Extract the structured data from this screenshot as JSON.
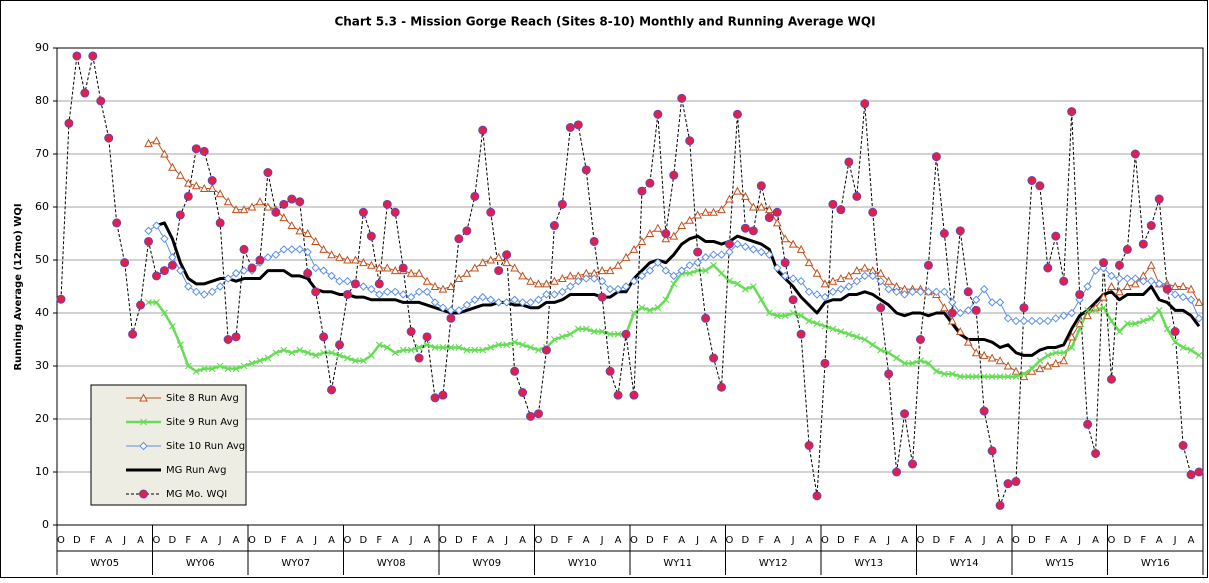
{
  "chart_data": {
    "type": "line",
    "title": "Chart 5.3 - Mission Gorge Reach (Sites 8-10) Monthly and Running Average WQI",
    "y_label": "Running Average (12mo) WQI",
    "ylim": [
      0,
      90
    ],
    "yticks": [
      0,
      10,
      20,
      30,
      40,
      50,
      60,
      70,
      80,
      90
    ],
    "grid": true,
    "legend": "bottom-left",
    "categories": [
      "O",
      null,
      "D",
      null,
      "F",
      null,
      "A",
      null,
      "J",
      null,
      "A",
      null,
      "O",
      null,
      "D",
      null,
      "F",
      null,
      "A",
      null,
      "J",
      null,
      "A",
      null,
      "O",
      null,
      "D",
      null,
      "F",
      null,
      "A",
      null,
      "J",
      null,
      "A",
      null,
      "O",
      null,
      "D",
      null,
      "F",
      null,
      "A",
      null,
      "J",
      null,
      "A",
      null,
      "O",
      null,
      "D",
      null,
      "F",
      null,
      "A",
      null,
      "J",
      null,
      "A",
      null,
      "O",
      null,
      "D",
      null,
      "F",
      null,
      "A",
      null,
      "J",
      null,
      "A",
      null,
      "O",
      null,
      "D",
      null,
      "F",
      null,
      "A",
      null,
      "J",
      null,
      "A",
      null,
      "O",
      null,
      "D",
      null,
      "F",
      null,
      "A",
      null,
      "J",
      null,
      "A",
      null,
      "O",
      null,
      "D",
      null,
      "F",
      null,
      "A",
      null,
      "J",
      null,
      "A",
      null,
      "O",
      null,
      "D",
      null,
      "F",
      null,
      "A",
      null,
      "J",
      null,
      "A",
      null,
      "O",
      null,
      "D",
      null,
      "F",
      null,
      "A",
      null,
      "J",
      null,
      "A",
      null,
      "O",
      null,
      "D",
      null,
      "F",
      null,
      "A",
      null,
      "J",
      null,
      "A",
      null
    ],
    "groups": [
      "WY05",
      "WY06",
      "WY07",
      "WY08",
      "WY09",
      "WY10",
      "WY11",
      "WY12",
      "WY13",
      "WY14",
      "WY15",
      "WY16"
    ],
    "series": [
      {
        "name": "Site 8 Run Avg",
        "color": "#c0501e",
        "marker": "triangle",
        "width": 1,
        "values": [
          null,
          null,
          null,
          null,
          null,
          null,
          null,
          null,
          null,
          null,
          null,
          72,
          72.5,
          70,
          67.5,
          66,
          64.5,
          64,
          63.5,
          63.5,
          62.5,
          61,
          59.5,
          59.5,
          60,
          61,
          60,
          59.5,
          58,
          56.5,
          55.5,
          55,
          53.5,
          52,
          51,
          50.5,
          50,
          50,
          49.5,
          49,
          48.5,
          48.5,
          48,
          48,
          47.5,
          47.5,
          46,
          45,
          44.5,
          45,
          46.5,
          47.5,
          48.5,
          49.5,
          50,
          50.5,
          49.5,
          48.5,
          47,
          46,
          45.5,
          45.5,
          46,
          46.5,
          47,
          47,
          47.5,
          47.5,
          48,
          48,
          49,
          50.5,
          52,
          53.5,
          55,
          56,
          54,
          54.5,
          56.5,
          57.5,
          58.5,
          59,
          59,
          59.5,
          61.5,
          63,
          62,
          60,
          60,
          59.5,
          57,
          54,
          53,
          52,
          49.5,
          47.5,
          45.5,
          46,
          46.5,
          47,
          48,
          48.5,
          48,
          47.5,
          46,
          45,
          44.5,
          44.5,
          44.5,
          44,
          43.5,
          41,
          38.5,
          36.5,
          34.5,
          32.5,
          32,
          31.5,
          31,
          30,
          29,
          28,
          29,
          29.5,
          30,
          30.5,
          31,
          35.5,
          38,
          39.5,
          41,
          43,
          45,
          44,
          45,
          45.5,
          47,
          49,
          45.5,
          45.5,
          45,
          45,
          44.5,
          42
        ]
      },
      {
        "name": "Site 9 Run Avg",
        "color": "#66dd55",
        "marker": "x",
        "width": 2.5,
        "values": [
          null,
          null,
          null,
          null,
          null,
          null,
          null,
          null,
          null,
          null,
          null,
          42,
          42,
          40,
          37.5,
          34,
          30,
          29,
          29.5,
          29.5,
          30,
          29.5,
          29.5,
          30,
          30.5,
          31,
          31.5,
          32.5,
          33,
          32.5,
          33,
          32.5,
          32,
          32.5,
          32.5,
          32,
          31.5,
          31,
          31,
          32,
          34,
          33.5,
          32.5,
          33,
          33,
          33.5,
          34,
          33.5,
          33.5,
          33.5,
          33.5,
          33,
          33,
          33,
          33.5,
          34,
          34,
          34.5,
          34,
          33.5,
          33,
          33.5,
          35,
          35.5,
          36,
          37,
          37,
          36.5,
          36.5,
          36,
          36,
          36,
          40,
          41,
          40.5,
          41,
          42.5,
          45.5,
          47.5,
          47.5,
          48,
          48,
          49,
          47.5,
          46,
          45.5,
          44.5,
          45,
          42.5,
          40,
          39.5,
          39.5,
          40,
          39.5,
          38.5,
          38,
          37.5,
          37,
          36.5,
          36,
          35.5,
          35,
          34,
          33,
          32.5,
          31.5,
          30.5,
          30.5,
          31,
          30.5,
          29,
          28.5,
          28.5,
          28,
          28,
          28,
          28,
          28,
          28,
          28,
          28,
          28.5,
          29.5,
          31,
          32,
          32.5,
          32.5,
          33.5,
          37,
          40.5,
          40.5,
          41,
          38.5,
          36.5,
          38,
          38,
          38.5,
          39,
          40.5,
          37,
          34.5,
          33.5,
          33,
          32
        ]
      },
      {
        "name": "Site 10 Run Avg",
        "color": "#5b8fe8",
        "marker": "diamond",
        "width": 1,
        "values": [
          null,
          null,
          null,
          null,
          null,
          null,
          null,
          null,
          null,
          null,
          null,
          55.5,
          56.5,
          54,
          50.5,
          48,
          45,
          44,
          43.5,
          44,
          45,
          46.5,
          47.5,
          48,
          48,
          49.5,
          50.5,
          51,
          52,
          52,
          52,
          51.5,
          48.5,
          48,
          47,
          46,
          46,
          45.5,
          45,
          44.5,
          43.5,
          44,
          44,
          43.5,
          43,
          44,
          44,
          42,
          41,
          40.5,
          40.5,
          41.5,
          42.5,
          43,
          42.5,
          42,
          42,
          42.5,
          42,
          42,
          42.5,
          43.5,
          43.5,
          44,
          45,
          46,
          46.5,
          46.5,
          46,
          44.5,
          44.5,
          45,
          46,
          47,
          48,
          49.5,
          48,
          47,
          48,
          49,
          49.5,
          50.5,
          51,
          51,
          51.5,
          53,
          52.5,
          52,
          51.5,
          51,
          48.5,
          47,
          46.5,
          46,
          44,
          43.5,
          43,
          44,
          44.5,
          45,
          46,
          47,
          47,
          46,
          44.5,
          44,
          43.5,
          44,
          44,
          44,
          44,
          44,
          42,
          40,
          40.5,
          42.5,
          44.5,
          42,
          42,
          39,
          38.5,
          38.5,
          38.5,
          38.5,
          38.5,
          39,
          39.5,
          40,
          42.5,
          45,
          48,
          48.5,
          47,
          46.5,
          46.5,
          46.5,
          46,
          46,
          45.5,
          45,
          43.5,
          43,
          42.5,
          39
        ]
      },
      {
        "name": "MG Run Avg",
        "color": "#000000",
        "marker": "none",
        "width": 3,
        "values": [
          null,
          null,
          null,
          null,
          null,
          null,
          null,
          null,
          null,
          null,
          null,
          null,
          56.5,
          57,
          54,
          49.5,
          46.5,
          45.5,
          45.5,
          46,
          46.5,
          46.5,
          46,
          46.5,
          46.5,
          46.5,
          48,
          48,
          48,
          47,
          47,
          46.5,
          44.5,
          44,
          44,
          43.5,
          43.5,
          43,
          43,
          42.5,
          42.5,
          42.5,
          42.5,
          42,
          42,
          42,
          41.5,
          41,
          40.5,
          40,
          40,
          40.5,
          41,
          41.5,
          41.5,
          42,
          42,
          41.5,
          41.5,
          41,
          41,
          42,
          42,
          42.5,
          43.5,
          43.5,
          43.5,
          43.5,
          43,
          43,
          44,
          44,
          46.5,
          48,
          49.5,
          50,
          49.5,
          51,
          53,
          54,
          54.5,
          53.5,
          53.5,
          53,
          53.5,
          54.5,
          54,
          53.5,
          53,
          52,
          48,
          46.5,
          45,
          43,
          41.5,
          40,
          42,
          42.5,
          42.5,
          43.5,
          43.5,
          44,
          43.5,
          42.5,
          41.5,
          40,
          39.5,
          40,
          40,
          39.5,
          40,
          40,
          38,
          36,
          35,
          35,
          35,
          34.5,
          33.5,
          34,
          32.5,
          32,
          32,
          33,
          33.5,
          33.5,
          34,
          37,
          39.5,
          40.5,
          42,
          43.5,
          44,
          42.5,
          43.5,
          43.5,
          43.5,
          45,
          42.5,
          42,
          40.5,
          40.5,
          39.5,
          37.5
        ]
      },
      {
        "name": "MG Mo. WQI",
        "color": "#000000",
        "marker": "circle",
        "marker_fill": "#e0204a",
        "marker_stroke": "#7040b0",
        "dash": true,
        "width": 1,
        "values": [
          42.6,
          75.8,
          88.5,
          81.5,
          88.5,
          80,
          73,
          57,
          49.5,
          36,
          41.5,
          53.5,
          47,
          48,
          49,
          58.5,
          62,
          71,
          70.5,
          65,
          57,
          35,
          35.5,
          52,
          48.5,
          50,
          66.5,
          59,
          60.5,
          61.5,
          61,
          47.5,
          44,
          35.5,
          25.5,
          34,
          43.5,
          45.5,
          59,
          54.5,
          45.5,
          60.5,
          59,
          48.5,
          36.5,
          31.5,
          35.5,
          24,
          24.5,
          39,
          54,
          55.5,
          62,
          74.5,
          59,
          48,
          51,
          29,
          25,
          20.5,
          21,
          33,
          56.5,
          60.5,
          75,
          75.5,
          67,
          53.5,
          43,
          29,
          24.5,
          36,
          24.5,
          63,
          64.5,
          77.5,
          55,
          66,
          80.5,
          72.5,
          51.5,
          39,
          31.5,
          26,
          53,
          77.5,
          56,
          55.5,
          64,
          58,
          59,
          49.5,
          42.5,
          36,
          15,
          5.5,
          30.5,
          60.5,
          59.5,
          68.5,
          62,
          79.5,
          59,
          41,
          28.5,
          10,
          21,
          11.5,
          35,
          49,
          69.5,
          55,
          40,
          55.5,
          44,
          40.5,
          21.5,
          14,
          3.7,
          7.8,
          8.2,
          41,
          65,
          64,
          48.5,
          54.5,
          46,
          78,
          43.5,
          19,
          13.5,
          49.5,
          27.5,
          49,
          52,
          70,
          53,
          56.5,
          61.5,
          44.5,
          36.5,
          15,
          9.5,
          10
        ]
      }
    ]
  }
}
